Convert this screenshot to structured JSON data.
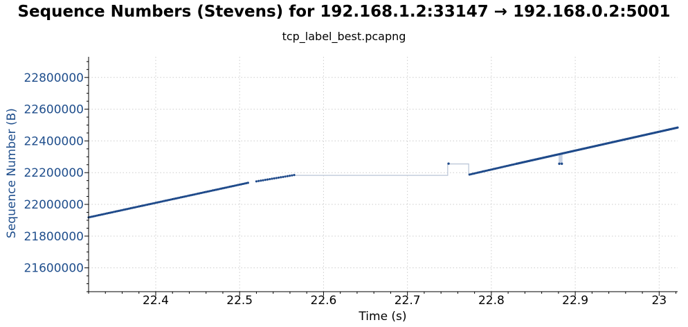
{
  "chart_data": {
    "type": "scatter",
    "title": "Sequence Numbers (Stevens) for 192.168.1.2:33147 → 192.168.0.2:5001",
    "subtitle": "tcp_label_best.pcapng",
    "xlabel": "Time (s)",
    "ylabel": "Sequence Number (B)",
    "xlim": [
      22.32,
      23.022
    ],
    "ylim": [
      21450000,
      22930000
    ],
    "xticks": [
      22.4,
      22.5,
      22.6,
      22.7,
      22.8,
      22.9,
      23
    ],
    "xtick_labels": [
      "22.4",
      "22.5",
      "22.6",
      "22.7",
      "22.8",
      "22.9",
      "23"
    ],
    "yticks": [
      21600000,
      21800000,
      22000000,
      22200000,
      22400000,
      22600000,
      22800000
    ],
    "ytick_labels": [
      "21600000",
      "21800000",
      "22000000",
      "22200000",
      "22400000",
      "22600000",
      "22800000"
    ],
    "grid": true,
    "colors": {
      "points": "#1f4a8a",
      "ack_line": "#b8c4d6"
    },
    "series": [
      {
        "segments": [
          {
            "x_start": 22.32,
            "x_end": 22.51,
            "y_start": 21918000,
            "y_end": 22136000,
            "points": 96
          },
          {
            "x_start": 22.52,
            "x_end": 22.565,
            "y_start": 22145000,
            "y_end": 22185000,
            "points": 18
          },
          {
            "x_start": 22.774,
            "x_end": 22.83,
            "y_start": 22188000,
            "y_end": 22256000,
            "points": 30
          },
          {
            "x_start": 22.83,
            "x_end": 23.022,
            "y_start": 22256000,
            "y_end": 22484000,
            "points": 160
          }
        ],
        "isolated_points": [
          {
            "x": 22.749,
            "y": 22257000
          },
          {
            "x": 22.881,
            "y": 22256000
          },
          {
            "x": 22.884,
            "y": 22256000
          }
        ]
      },
      {
        "steps": [
          {
            "x": 22.565,
            "y": 22183000
          },
          {
            "x": 22.748,
            "y": 22183000
          },
          {
            "x": 22.748,
            "y": 22255000
          },
          {
            "x": 22.773,
            "y": 22255000
          },
          {
            "x": 22.773,
            "y": 22189000
          }
        ]
      }
    ]
  }
}
